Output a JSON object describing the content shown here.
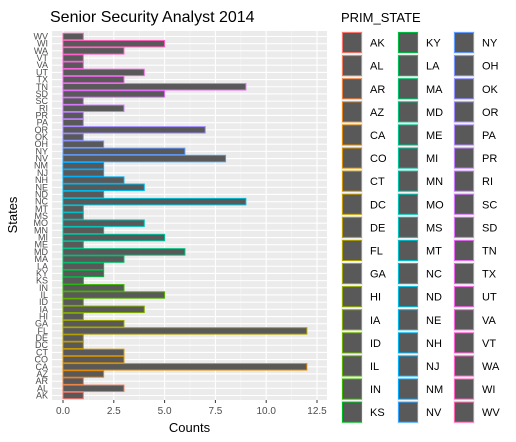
{
  "chart_data": {
    "type": "bar",
    "orientation": "horizontal",
    "title": "Senior Security Analyst 2014",
    "xlabel": "Counts",
    "ylabel": "States",
    "xlim": [
      0,
      12.5
    ],
    "x_ticks": [
      0,
      2.5,
      5,
      7.5,
      10,
      12.5
    ],
    "x_tick_labels": [
      "0.0",
      "2.5",
      "5.0",
      "7.5",
      "10.0",
      "12.5"
    ],
    "grid": true,
    "categories": [
      "AK",
      "AL",
      "AR",
      "AZ",
      "CA",
      "CO",
      "CT",
      "DC",
      "DE",
      "FL",
      "GA",
      "HI",
      "IA",
      "ID",
      "IL",
      "IN",
      "KS",
      "KY",
      "LA",
      "MA",
      "MD",
      "ME",
      "MI",
      "MN",
      "MO",
      "MS",
      "MT",
      "NC",
      "ND",
      "NE",
      "NH",
      "NJ",
      "NM",
      "NV",
      "NY",
      "OH",
      "OK",
      "OR",
      "PA",
      "PR",
      "RI",
      "SC",
      "SD",
      "TN",
      "TX",
      "UT",
      "VA",
      "VT",
      "WA",
      "WI",
      "WV"
    ],
    "values": [
      1,
      3,
      1,
      2,
      12,
      3,
      3,
      1,
      1,
      12,
      3,
      1,
      4,
      1,
      5,
      3,
      1,
      2,
      2,
      3,
      6,
      1,
      5,
      2,
      4,
      1,
      1,
      9,
      2,
      4,
      3,
      2,
      2,
      8,
      6,
      2,
      1,
      7,
      1,
      1,
      3,
      1,
      5,
      9,
      3,
      4,
      1,
      1,
      3,
      5,
      1
    ],
    "legend_title": "PRIM_STATE",
    "legend_position": "right",
    "colors": {
      "bar_fill": "#595959",
      "panel_bg": "#ebebeb",
      "grid_major": "#ffffff",
      "grid_minor": "#f5f5f5",
      "series": [
        "#F8766D",
        "#F37B59",
        "#ED8141",
        "#E7861B",
        "#DF8C00",
        "#D79000",
        "#CE9500",
        "#C49A00",
        "#B99E00",
        "#ADA200",
        "#A0A600",
        "#93AA00",
        "#83AD00",
        "#70B000",
        "#59B300",
        "#39B600",
        "#00B81F",
        "#00BA42",
        "#00BC59",
        "#00BE6B",
        "#00BF7C",
        "#00C08B",
        "#00C19A",
        "#00C1A7",
        "#00C1B4",
        "#00C0C0",
        "#00BFCB",
        "#00BDD6",
        "#00BAE0",
        "#00B7E9",
        "#00B3F2",
        "#00AEFA",
        "#00A9FF",
        "#35A2FF",
        "#619CFF",
        "#7B95FF",
        "#9090FF",
        "#A18AFF",
        "#B085FF",
        "#BE80FF",
        "#CA7BFD",
        "#D575FE",
        "#DE71F9",
        "#E76BF3",
        "#EE67ED",
        "#F464E5",
        "#F962DD",
        "#FC61D4",
        "#FF61C9",
        "#FF62BE",
        "#FF64B2"
      ]
    }
  }
}
